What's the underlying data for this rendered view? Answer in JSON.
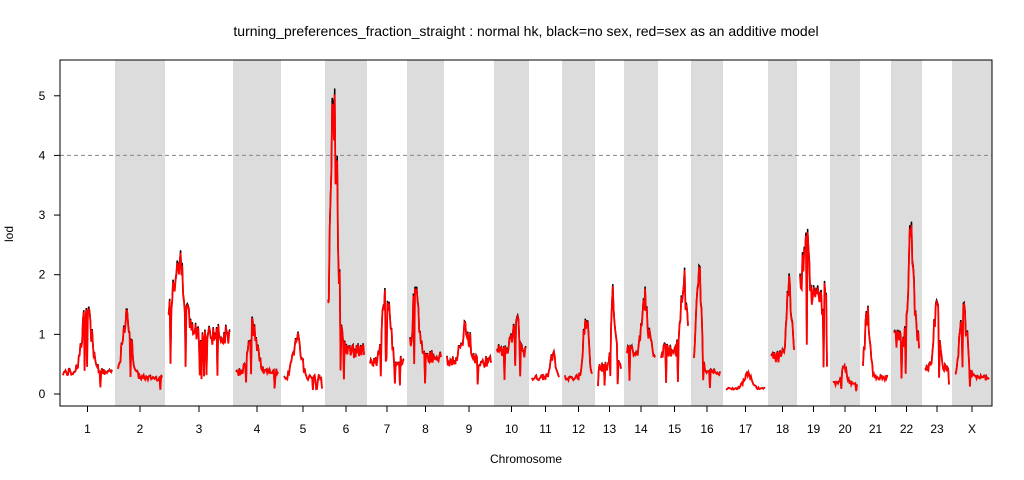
{
  "chart_data": {
    "type": "line",
    "title": "turning_preferences_fraction_straight : normal hk, black=no sex, red=sex as an additive model",
    "xlabel": "Chromosome",
    "ylabel": "lod",
    "ylim": [
      0,
      5.6
    ],
    "yticks": [
      "0",
      "1",
      "2",
      "3",
      "4",
      "5"
    ],
    "threshold": 4.0,
    "grid": false,
    "shaded_bands": "alternating chromosomes",
    "colors": {
      "series_no_sex": "#000000",
      "series_sex_additive": "#ff0000",
      "band": "#dcdcdc",
      "threshold": "#888888"
    },
    "chromosomes": [
      {
        "label": "1",
        "shaded": false,
        "peak": 1.65,
        "base": 0.4
      },
      {
        "label": "2",
        "shaded": true,
        "peak": 1.55,
        "base": 0.3
      },
      {
        "label": "3",
        "shaded": false,
        "peak": 2.6,
        "base": 1.1
      },
      {
        "label": "4",
        "shaded": true,
        "peak": 1.4,
        "base": 0.4
      },
      {
        "label": "5",
        "shaded": false,
        "peak": 1.2,
        "base": 0.3
      },
      {
        "label": "6",
        "shaded": true,
        "peak": 5.4,
        "base": 0.8
      },
      {
        "label": "7",
        "shaded": false,
        "peak": 2.15,
        "base": 0.6
      },
      {
        "label": "8",
        "shaded": true,
        "peak": 1.95,
        "base": 0.7
      },
      {
        "label": "9",
        "shaded": false,
        "peak": 1.25,
        "base": 0.6
      },
      {
        "label": "10",
        "shaded": true,
        "peak": 1.6,
        "base": 0.8
      },
      {
        "label": "11",
        "shaded": false,
        "peak": 0.75,
        "base": 0.3
      },
      {
        "label": "12",
        "shaded": true,
        "peak": 1.5,
        "base": 0.3
      },
      {
        "label": "13",
        "shaded": false,
        "peak": 1.85,
        "base": 0.5
      },
      {
        "label": "14",
        "shaded": true,
        "peak": 1.8,
        "base": 0.8
      },
      {
        "label": "15",
        "shaded": false,
        "peak": 2.15,
        "base": 0.8
      },
      {
        "label": "16",
        "shaded": true,
        "peak": 2.3,
        "base": 0.4
      },
      {
        "label": "17",
        "shaded": false,
        "peak": 0.4,
        "base": 0.1
      },
      {
        "label": "18",
        "shaded": true,
        "peak": 2.2,
        "base": 0.7
      },
      {
        "label": "19",
        "shaded": false,
        "peak": 3.2,
        "base": 1.8
      },
      {
        "label": "20",
        "shaded": true,
        "peak": 0.55,
        "base": 0.2
      },
      {
        "label": "21",
        "shaded": false,
        "peak": 1.6,
        "base": 0.3
      },
      {
        "label": "22",
        "shaded": true,
        "peak": 3.2,
        "base": 1.0
      },
      {
        "label": "23",
        "shaded": false,
        "peak": 1.85,
        "base": 0.5
      },
      {
        "label": "X",
        "shaded": true,
        "peak": 1.75,
        "base": 0.3
      }
    ]
  }
}
